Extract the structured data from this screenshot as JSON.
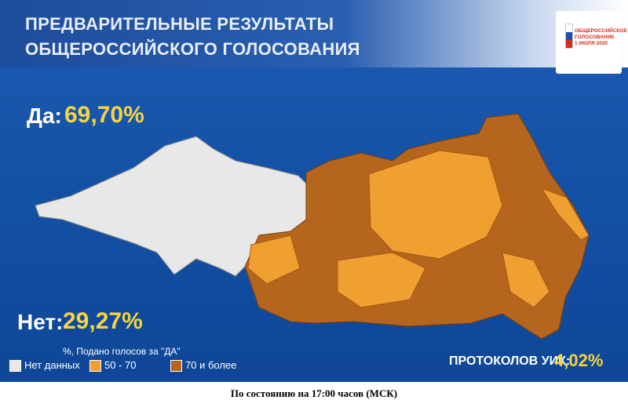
{
  "header": {
    "title_line1": "ПРЕДВАРИТЕЛЬНЫЕ РЕЗУЛЬТАТЫ",
    "title_line2": "ОБЩЕРОССИЙСКОГО ГОЛОСОВАНИЯ",
    "logo": {
      "line1": "ОБЩЕРОССИЙСКОЕ",
      "line2": "ГОЛОСОВАНИЕ",
      "line3": "1 ИЮЛЯ 2020"
    }
  },
  "results": {
    "yes_label": "Да:",
    "yes_value": "69,70%",
    "no_label": "Нет:",
    "no_value": "29,27%"
  },
  "legend": {
    "title": "%, Подано голосов за \"ДА\"",
    "items": [
      "Нет данных",
      "50 - 70",
      "70 и более"
    ]
  },
  "protocols": {
    "label": "ПРОТОКОЛОВ УИК:",
    "value": "4,02%"
  },
  "caption": "По состоянию на 17:00 часов (МСК)"
}
